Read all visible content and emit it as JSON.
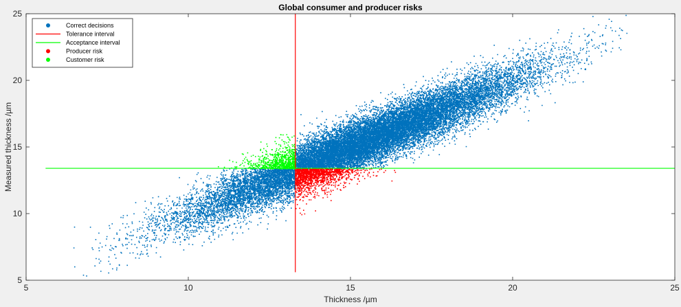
{
  "chart_data": {
    "type": "scatter",
    "title": "Global consumer and producer risks",
    "xlabel": "Thickness /µm",
    "ylabel": "Measured thickness /µm",
    "xlim": [
      5,
      25
    ],
    "ylim": [
      5,
      25
    ],
    "xticks": [
      5,
      10,
      15,
      20,
      25
    ],
    "yticks": [
      5,
      10,
      15,
      20,
      25
    ],
    "x_tick_labels": [
      "5",
      "10",
      "15",
      "20",
      "25"
    ],
    "y_tick_labels": [
      "5",
      "10",
      "15",
      "20",
      "25"
    ],
    "grid": false,
    "legend_position": "top-left",
    "legend": [
      {
        "label": "Correct decisions",
        "marker": "dot",
        "color": "#0072bd"
      },
      {
        "label": "Tolerance interval",
        "marker": "line",
        "color": "#ff0000"
      },
      {
        "label": "Acceptance interval",
        "marker": "line",
        "color": "#00ff00"
      },
      {
        "label": "Producer risk",
        "marker": "dot",
        "color": "#ff0000"
      },
      {
        "label": "Customer risk",
        "marker": "dot",
        "color": "#00ff00"
      }
    ],
    "tolerance_limit_x": 13.3,
    "acceptance_limit_y": 13.4,
    "tolerance_line_y_range": [
      5.6,
      25
    ],
    "acceptance_line_x_range": [
      5.6,
      25
    ],
    "population": {
      "mean_x": 15.2,
      "mean_y": 15.2,
      "sd_x": 2.55,
      "correlation_slope": 1.0,
      "residual_sd": 0.95,
      "x_range": [
        6.4,
        23.6
      ]
    },
    "colors": {
      "correct": "#0072bd",
      "producer": "#ff0000",
      "customer": "#00ff00",
      "tolerance": "#ff0000",
      "acceptance": "#00ff00",
      "plot_background": "#ffffff",
      "figure_background": "#f0f0f0"
    }
  }
}
